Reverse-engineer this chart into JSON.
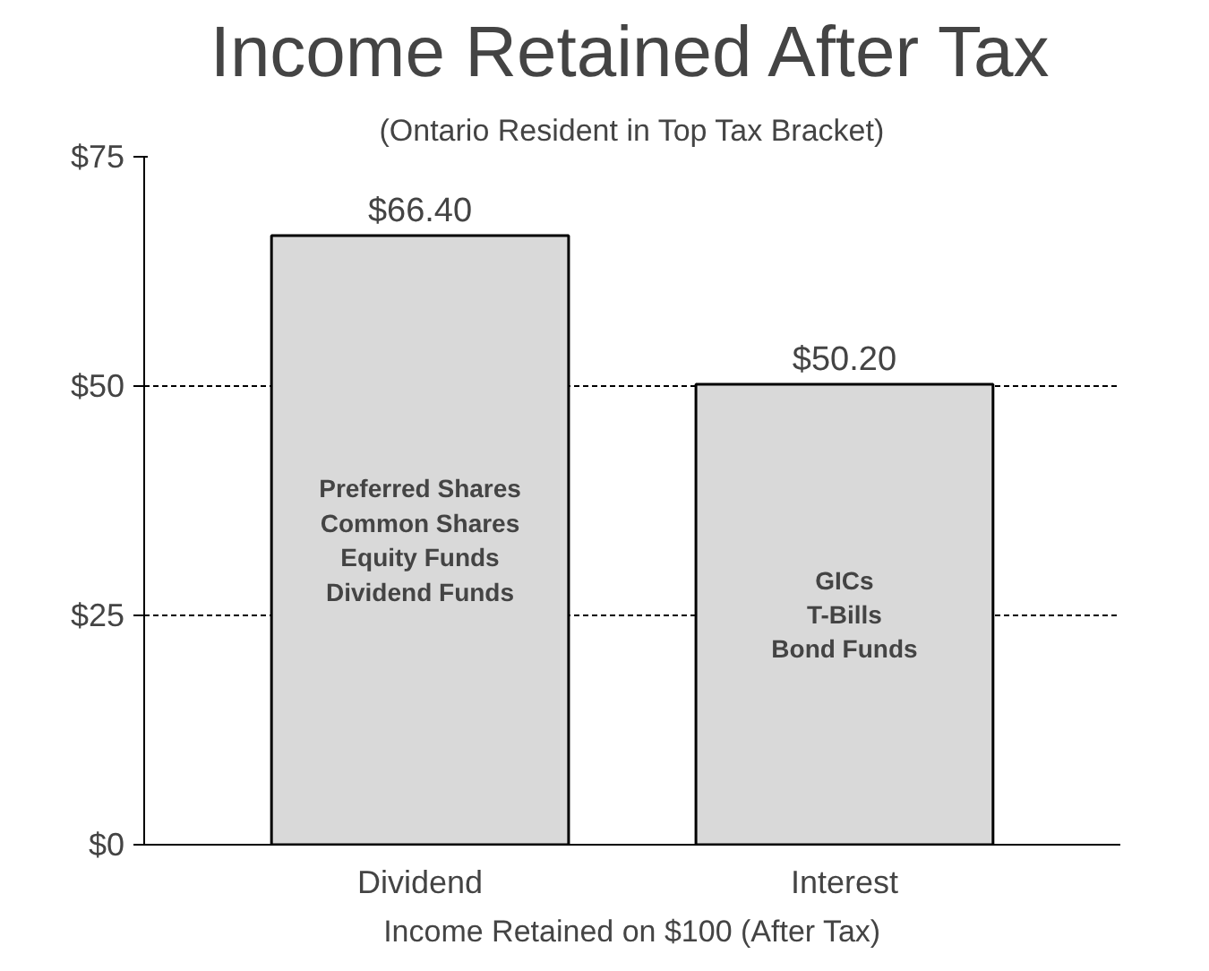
{
  "chart_data": {
    "type": "bar",
    "title": "Income Retained After Tax",
    "subtitle": "(Ontario Resident in Top Tax Bracket)",
    "xlabel": "Income Retained on $100 (After Tax)",
    "categories": [
      "Dividend",
      "Interest"
    ],
    "values": [
      66.4,
      50.2
    ],
    "color": "#d9d9d9",
    "value_labels": [
      "$66.40",
      "$50.20"
    ],
    "ylim": [
      0,
      75
    ],
    "yticks": [
      {
        "value": 0,
        "label": "$0"
      },
      {
        "value": 25,
        "label": "$25"
      },
      {
        "value": 50,
        "label": "$50"
      },
      {
        "value": 75,
        "label": "$75"
      }
    ],
    "grid": "y",
    "annotations": [
      "Preferred Shares\nCommon Shares\nEquity Funds\nDividend Funds",
      "GICs\nT-Bills\nBond Funds"
    ]
  }
}
